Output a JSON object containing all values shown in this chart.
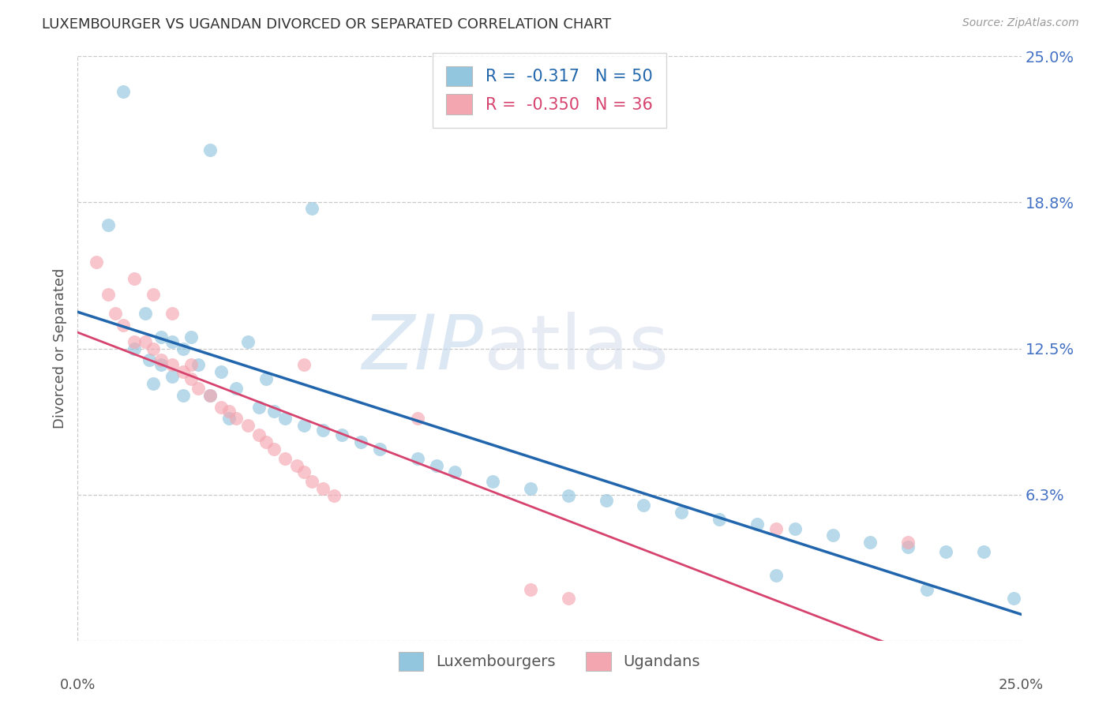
{
  "title": "LUXEMBOURGER VS UGANDAN DIVORCED OR SEPARATED CORRELATION CHART",
  "source": "Source: ZipAtlas.com",
  "ylabel": "Divorced or Separated",
  "blue_label": "Luxembourgers",
  "pink_label": "Ugandans",
  "xlim": [
    0.0,
    0.25
  ],
  "ylim": [
    0.0,
    0.25
  ],
  "yticks": [
    0.0,
    0.0625,
    0.125,
    0.1875,
    0.25
  ],
  "ytick_labels": [
    "",
    "6.3%",
    "12.5%",
    "18.8%",
    "25.0%"
  ],
  "legend1_text": "R =  -0.317   N = 50",
  "legend2_text": "R =  -0.350   N = 36",
  "blue_color": "#92c5de",
  "pink_color": "#f4a6b0",
  "blue_line_color": "#2166ac",
  "pink_line_color": "#d6436e",
  "right_label_color": "#4472c4",
  "watermark": "ZIPatlas",
  "blue_scatter_x": [
    0.012,
    0.035,
    0.062,
    0.008,
    0.018,
    0.022,
    0.025,
    0.015,
    0.019,
    0.028,
    0.032,
    0.022,
    0.025,
    0.03,
    0.045,
    0.02,
    0.038,
    0.042,
    0.05,
    0.028,
    0.035,
    0.048,
    0.052,
    0.04,
    0.055,
    0.06,
    0.065,
    0.07,
    0.075,
    0.08,
    0.09,
    0.095,
    0.1,
    0.11,
    0.12,
    0.13,
    0.14,
    0.15,
    0.16,
    0.17,
    0.18,
    0.19,
    0.2,
    0.21,
    0.22,
    0.23,
    0.24,
    0.185,
    0.225,
    0.248
  ],
  "blue_scatter_y": [
    0.235,
    0.21,
    0.185,
    0.178,
    0.14,
    0.13,
    0.128,
    0.125,
    0.12,
    0.125,
    0.118,
    0.118,
    0.113,
    0.13,
    0.128,
    0.11,
    0.115,
    0.108,
    0.112,
    0.105,
    0.105,
    0.1,
    0.098,
    0.095,
    0.095,
    0.092,
    0.09,
    0.088,
    0.085,
    0.082,
    0.078,
    0.075,
    0.072,
    0.068,
    0.065,
    0.062,
    0.06,
    0.058,
    0.055,
    0.052,
    0.05,
    0.048,
    0.045,
    0.042,
    0.04,
    0.038,
    0.038,
    0.028,
    0.022,
    0.018
  ],
  "pink_scatter_x": [
    0.005,
    0.008,
    0.01,
    0.012,
    0.015,
    0.018,
    0.02,
    0.022,
    0.025,
    0.028,
    0.03,
    0.032,
    0.035,
    0.038,
    0.04,
    0.042,
    0.045,
    0.048,
    0.05,
    0.052,
    0.055,
    0.058,
    0.06,
    0.062,
    0.065,
    0.068,
    0.015,
    0.02,
    0.025,
    0.03,
    0.06,
    0.09,
    0.12,
    0.13,
    0.185,
    0.22
  ],
  "pink_scatter_y": [
    0.162,
    0.148,
    0.14,
    0.135,
    0.128,
    0.128,
    0.125,
    0.12,
    0.118,
    0.115,
    0.112,
    0.108,
    0.105,
    0.1,
    0.098,
    0.095,
    0.092,
    0.088,
    0.085,
    0.082,
    0.078,
    0.075,
    0.072,
    0.068,
    0.065,
    0.062,
    0.155,
    0.148,
    0.14,
    0.118,
    0.118,
    0.095,
    0.022,
    0.018,
    0.048,
    0.042
  ],
  "background_color": "#ffffff",
  "grid_color": "#c8c8c8"
}
